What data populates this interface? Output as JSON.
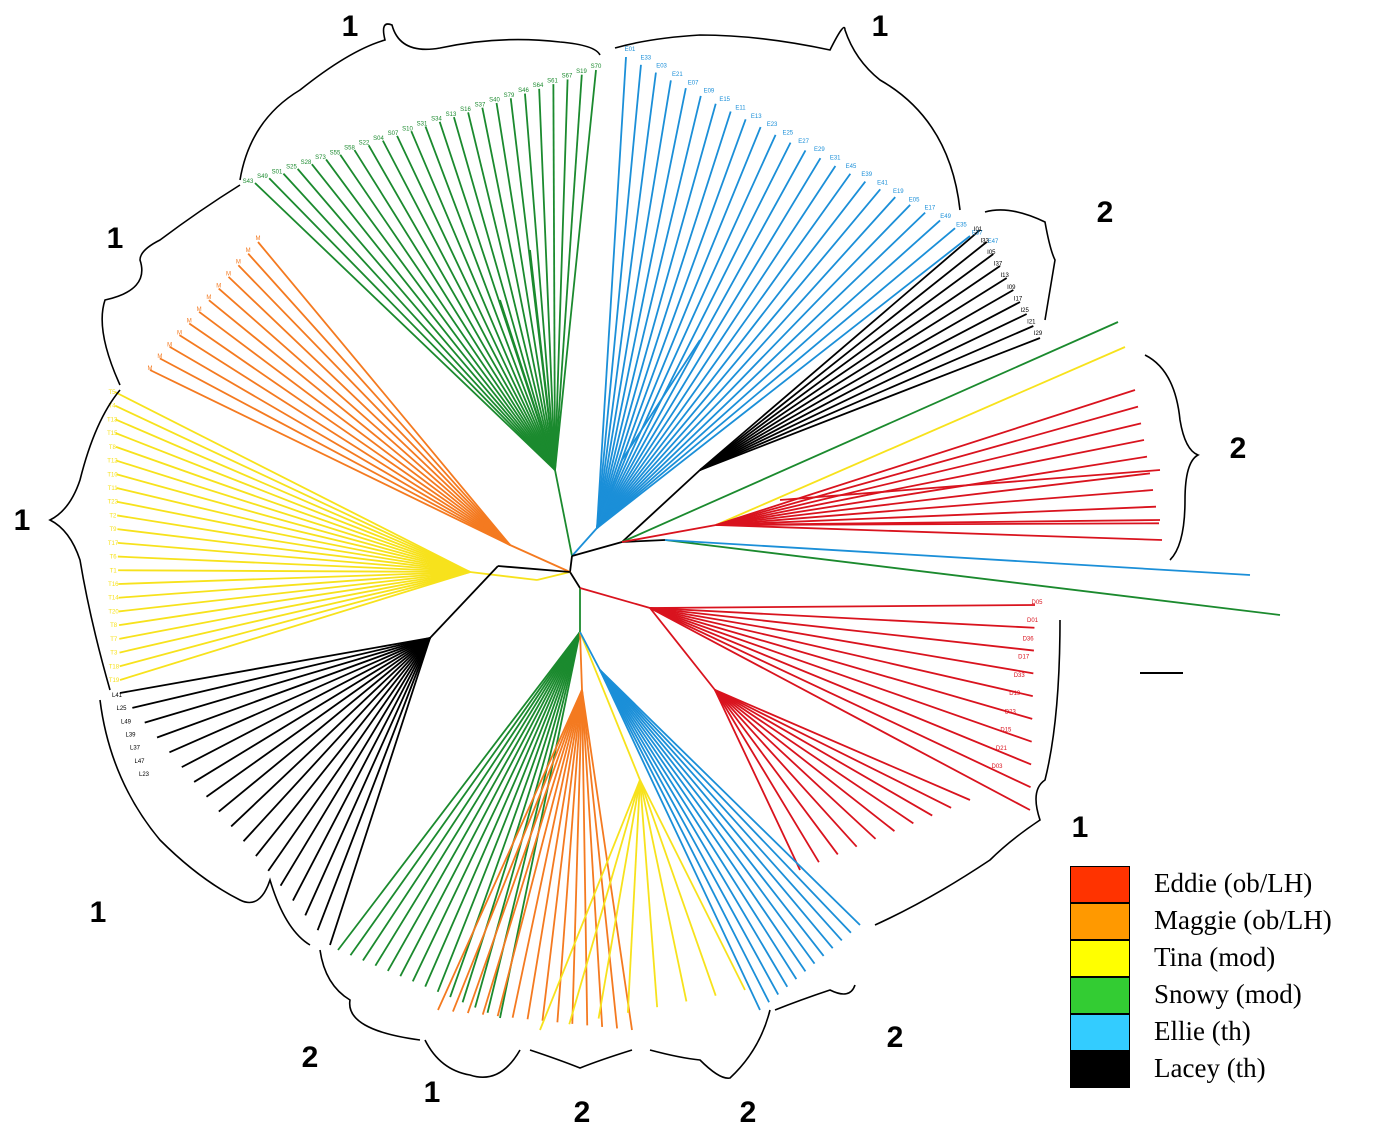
{
  "clade_labels": [
    "1",
    "1",
    "2",
    "1",
    "2",
    "1",
    "1",
    "1",
    "2",
    "2",
    "1",
    "2",
    "2"
  ],
  "colors": {
    "eddie": "#d9131e",
    "maggie": "#f47a20",
    "tina": "#f7e21c",
    "snowy": "#1b8a2e",
    "ellie": "#1b8fd8",
    "lacey": "#000000"
  },
  "legend": [
    {
      "label": "Eddie  (ob/LH)",
      "color": "#ff3300"
    },
    {
      "label": "Maggie (ob/LH)",
      "color": "#ff9900"
    },
    {
      "label": "Tina (mod)",
      "color": "#ffff00"
    },
    {
      "label": "Snowy (mod)",
      "color": "#33cc33"
    },
    {
      "label": "Ellie (th)",
      "color": "#33ccff"
    },
    {
      "label": "Lacey (th)",
      "color": "#000000"
    }
  ],
  "tip_labels": {
    "snowy": [
      "S43",
      "S49",
      "S01",
      "S25",
      "S28",
      "S73",
      "S55",
      "S58",
      "S22",
      "S04",
      "S07",
      "S10",
      "S31",
      "S34",
      "S13",
      "S16",
      "S37",
      "S40",
      "S79",
      "S46",
      "S64",
      "S61",
      "S67",
      "S19",
      "S70"
    ],
    "ellie": [
      "E01",
      "E33",
      "E03",
      "E21",
      "E07",
      "E09",
      "E15",
      "E11",
      "E13",
      "E23",
      "E25",
      "E27",
      "E29",
      "E31",
      "E45",
      "E39",
      "E41",
      "E19",
      "E05",
      "E17",
      "E49",
      "E35",
      "E37",
      "E47"
    ],
    "lacey_upper": [
      "I01",
      "I33",
      "I05",
      "I37",
      "I13",
      "I09",
      "I17",
      "I25",
      "I21",
      "I29"
    ],
    "eddie": [
      "D05",
      "D01",
      "D36",
      "D17",
      "D33",
      "D19",
      "D23",
      "D15",
      "D21",
      "D03"
    ],
    "maggie": [
      "M",
      "M",
      "M",
      "M",
      "M",
      "M",
      "M",
      "M",
      "M",
      "M",
      "M",
      "M"
    ],
    "tina": [
      "T5",
      "T4",
      "T13",
      "T15",
      "T8",
      "T12",
      "T10",
      "T11",
      "T23",
      "T2",
      "T9",
      "T17",
      "T6",
      "T1",
      "T16",
      "T14",
      "T20",
      "T8",
      "T7",
      "T3",
      "T18",
      "T19"
    ],
    "lacey_lower": [
      "L41",
      "L25",
      "L49",
      "L39",
      "L37",
      "L47",
      "L23"
    ]
  }
}
